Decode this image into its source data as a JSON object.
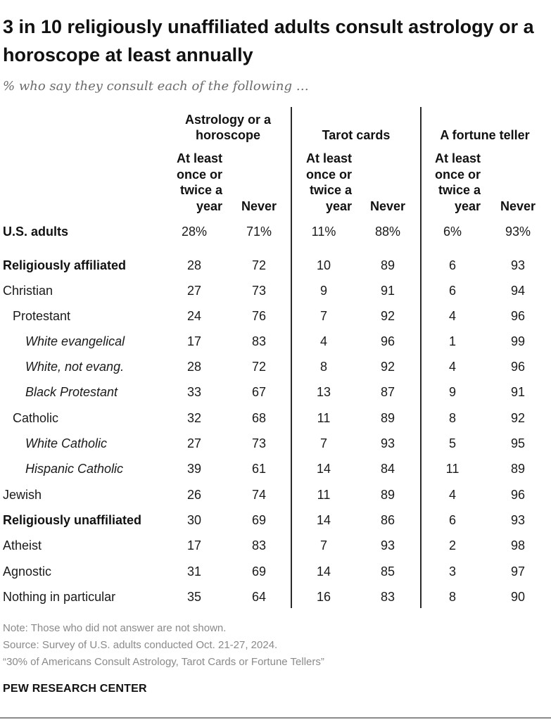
{
  "title": "3 in 10 religiously unaffiliated adults consult astrology or a horoscope at least annually",
  "subtitle": "% who say they consult each of the following …",
  "chart_data": {
    "type": "table",
    "groups": [
      {
        "name": "Astrology or a horoscope",
        "sub": [
          "At least once or twice a year",
          "Never"
        ]
      },
      {
        "name": "Tarot cards",
        "sub": [
          "At least once or twice a year",
          "Never"
        ]
      },
      {
        "name": "A fortune teller",
        "sub": [
          "At least once or twice a year",
          "Never"
        ]
      }
    ],
    "rows": [
      {
        "label": "U.S. adults",
        "style": "bold",
        "indent": 0,
        "values": [
          "28%",
          "71%",
          "11%",
          "88%",
          "6%",
          "93%"
        ]
      },
      {
        "label": "Religiously affiliated",
        "style": "bold",
        "indent": 0,
        "values": [
          "28",
          "72",
          "10",
          "89",
          "6",
          "93"
        ]
      },
      {
        "label": "Christian",
        "style": "normal",
        "indent": 0,
        "values": [
          "27",
          "73",
          "9",
          "91",
          "6",
          "94"
        ]
      },
      {
        "label": "Protestant",
        "style": "normal",
        "indent": 1,
        "values": [
          "24",
          "76",
          "7",
          "92",
          "4",
          "96"
        ]
      },
      {
        "label": "White evangelical",
        "style": "italic",
        "indent": 2,
        "values": [
          "17",
          "83",
          "4",
          "96",
          "1",
          "99"
        ]
      },
      {
        "label": "White, not evang.",
        "style": "italic",
        "indent": 2,
        "values": [
          "28",
          "72",
          "8",
          "92",
          "4",
          "96"
        ]
      },
      {
        "label": "Black Protestant",
        "style": "italic",
        "indent": 2,
        "values": [
          "33",
          "67",
          "13",
          "87",
          "9",
          "91"
        ]
      },
      {
        "label": "Catholic",
        "style": "normal",
        "indent": 1,
        "values": [
          "32",
          "68",
          "11",
          "89",
          "8",
          "92"
        ]
      },
      {
        "label": "White Catholic",
        "style": "italic",
        "indent": 2,
        "values": [
          "27",
          "73",
          "7",
          "93",
          "5",
          "95"
        ]
      },
      {
        "label": "Hispanic Catholic",
        "style": "italic",
        "indent": 2,
        "values": [
          "39",
          "61",
          "14",
          "84",
          "11",
          "89"
        ]
      },
      {
        "label": "Jewish",
        "style": "normal",
        "indent": 0,
        "values": [
          "26",
          "74",
          "11",
          "89",
          "4",
          "96"
        ]
      },
      {
        "label": "Religiously unaffiliated",
        "style": "bold",
        "indent": 0,
        "values": [
          "30",
          "69",
          "14",
          "86",
          "6",
          "93"
        ]
      },
      {
        "label": "Atheist",
        "style": "normal",
        "indent": 0,
        "values": [
          "17",
          "83",
          "7",
          "93",
          "2",
          "98"
        ]
      },
      {
        "label": "Agnostic",
        "style": "normal",
        "indent": 0,
        "values": [
          "31",
          "69",
          "14",
          "85",
          "3",
          "97"
        ]
      },
      {
        "label": "Nothing in particular",
        "style": "normal",
        "indent": 0,
        "values": [
          "35",
          "64",
          "16",
          "83",
          "8",
          "90"
        ]
      }
    ]
  },
  "notes": [
    "Note: Those who did not answer are not shown.",
    "Source: Survey of U.S. adults conducted Oct. 21-27, 2024.",
    "“30% of Americans Consult Astrology, Tarot Cards or Fortune Tellers”"
  ],
  "brand": "PEW RESEARCH CENTER"
}
